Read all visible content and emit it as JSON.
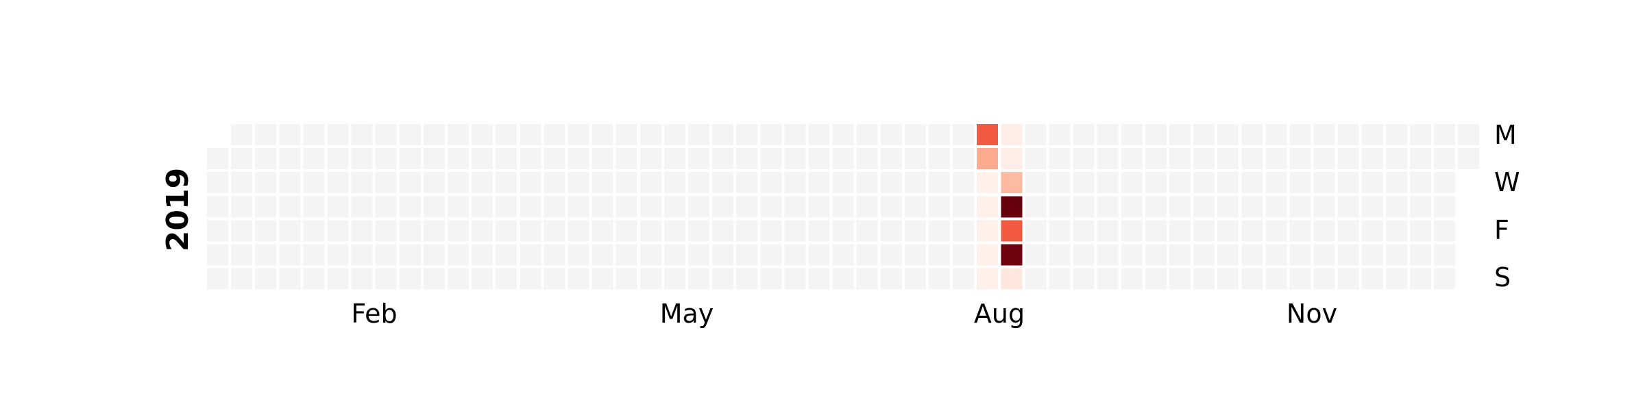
{
  "chart_data": {
    "type": "heatmap",
    "title": "",
    "year_label": "2019",
    "month_labels": [
      "Feb",
      "May",
      "Aug",
      "Nov"
    ],
    "weekday_labels": [
      "M",
      "W",
      "F",
      "S"
    ],
    "colormap": "Reds",
    "empty_color": "#f4f4f4",
    "start_date": "2019-01-01",
    "end_date": "2019-12-31",
    "week_start": "Monday",
    "vmax": 1,
    "values": [
      {
        "date": "2019-08-12",
        "value": 0.55
      },
      {
        "date": "2019-08-13",
        "value": 0.3
      },
      {
        "date": "2019-08-14",
        "value": 0.02
      },
      {
        "date": "2019-08-15",
        "value": 0.02
      },
      {
        "date": "2019-08-16",
        "value": 0.02
      },
      {
        "date": "2019-08-17",
        "value": 0.02
      },
      {
        "date": "2019-08-18",
        "value": 0.02
      },
      {
        "date": "2019-08-19",
        "value": 0.03
      },
      {
        "date": "2019-08-20",
        "value": 0.03
      },
      {
        "date": "2019-08-21",
        "value": 0.25
      },
      {
        "date": "2019-08-22",
        "value": 1.0
      },
      {
        "date": "2019-08-23",
        "value": 0.55
      },
      {
        "date": "2019-08-24",
        "value": 0.98
      },
      {
        "date": "2019-08-25",
        "value": 0.06
      }
    ]
  }
}
